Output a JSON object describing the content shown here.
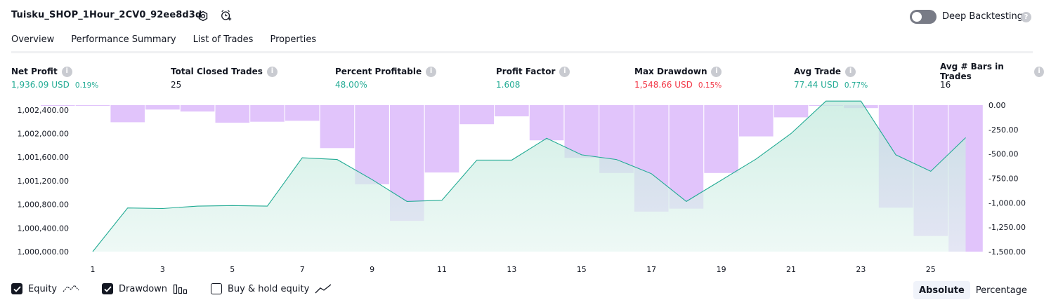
{
  "header": {
    "strategy_name": "Tuisku_SHOP_1Hour_2CV0_92ee8d3d",
    "icons": [
      "settings-icon",
      "alarm-add-icon"
    ],
    "deep_backtesting": {
      "label": "Deep Backtesting",
      "enabled": false,
      "help": "?"
    }
  },
  "tabs": [
    {
      "label": "Overview",
      "active": true
    },
    {
      "label": "Performance Summary",
      "active": false
    },
    {
      "label": "List of Trades",
      "active": false
    },
    {
      "label": "Properties",
      "active": false
    }
  ],
  "metrics": [
    {
      "label": "Net Profit",
      "value": "1,936.09 USD",
      "pct": "0.19%",
      "color": "green"
    },
    {
      "label": "Total Closed Trades",
      "value": "25",
      "pct": "",
      "color": "dark"
    },
    {
      "label": "Percent Profitable",
      "value": "48.00%",
      "pct": "",
      "color": "green"
    },
    {
      "label": "Profit Factor",
      "value": "1.608",
      "pct": "",
      "color": "green"
    },
    {
      "label": "Max Drawdown",
      "value": "1,548.66 USD",
      "pct": "0.15%",
      "color": "red"
    },
    {
      "label": "Avg Trade",
      "value": "77.44 USD",
      "pct": "0.77%",
      "color": "green"
    },
    {
      "label": "Avg # Bars in Trades",
      "value": "16",
      "pct": "",
      "color": "dark"
    }
  ],
  "colors": {
    "equity_line": "#22ab94",
    "equity_fill": "#c8ebe0",
    "drawdown": "#e1c4fb",
    "profit": "#22ab94",
    "loss": "#f23645"
  },
  "chart_data": {
    "type": "area",
    "x_ticks": [
      "1",
      "3",
      "5",
      "7",
      "9",
      "11",
      "13",
      "15",
      "17",
      "19",
      "21",
      "23",
      "25"
    ],
    "y_left_ticks": [
      "1,002,400.00",
      "1,002,000.00",
      "1,001,600.00",
      "1,001,200.00",
      "1,000,800.00",
      "1,000,400.00",
      "1,000,000.00"
    ],
    "y_right_ticks": [
      "0.00",
      "-250.00",
      "-500.00",
      "-750.00",
      "-1,000.00",
      "-1,250.00",
      "-1,500.00"
    ],
    "y_left_range": [
      1000000,
      1002600
    ],
    "y_right_range": [
      -1500,
      0
    ],
    "series": [
      {
        "name": "Equity",
        "x": [
          1,
          2,
          3,
          4,
          5,
          6,
          7,
          8,
          9,
          10,
          11,
          12,
          13,
          14,
          15,
          16,
          17,
          18,
          19,
          20,
          21,
          22,
          23,
          24,
          25,
          26
        ],
        "values": [
          1000000,
          1000740,
          1000730,
          1000770,
          1000780,
          1000770,
          1001590,
          1001560,
          1001220,
          1000850,
          1000870,
          1001550,
          1001550,
          1001920,
          1001640,
          1001560,
          1001320,
          1000850,
          1001210,
          1001570,
          1002000,
          1002550,
          1002550,
          1001640,
          1001360,
          1001930
        ]
      },
      {
        "name": "Drawdown",
        "x": [
          0,
          1,
          2,
          3,
          4,
          5,
          6,
          7,
          8,
          9,
          10,
          11,
          12,
          13,
          14,
          15,
          16,
          17,
          18,
          19,
          20,
          21,
          22,
          23,
          24,
          25,
          26
        ],
        "values": [
          -2,
          -2,
          -175,
          -45,
          -65,
          -180,
          -170,
          -160,
          -440,
          -810,
          -1185,
          -690,
          -195,
          -115,
          -360,
          -540,
          -695,
          -1090,
          -1060,
          -695,
          -320,
          -125,
          0,
          -30,
          -1050,
          -1340,
          -1500
        ]
      }
    ]
  },
  "legend": [
    {
      "label": "Equity",
      "checked": true,
      "icon": "equity-line-icon"
    },
    {
      "label": "Drawdown",
      "checked": true,
      "icon": "drawdown-bars-icon"
    },
    {
      "label": "Buy & hold equity",
      "checked": false,
      "icon": "buy-hold-line-icon"
    }
  ],
  "view_mode": {
    "options": [
      "Absolute",
      "Percentage"
    ],
    "selected": "Absolute"
  }
}
